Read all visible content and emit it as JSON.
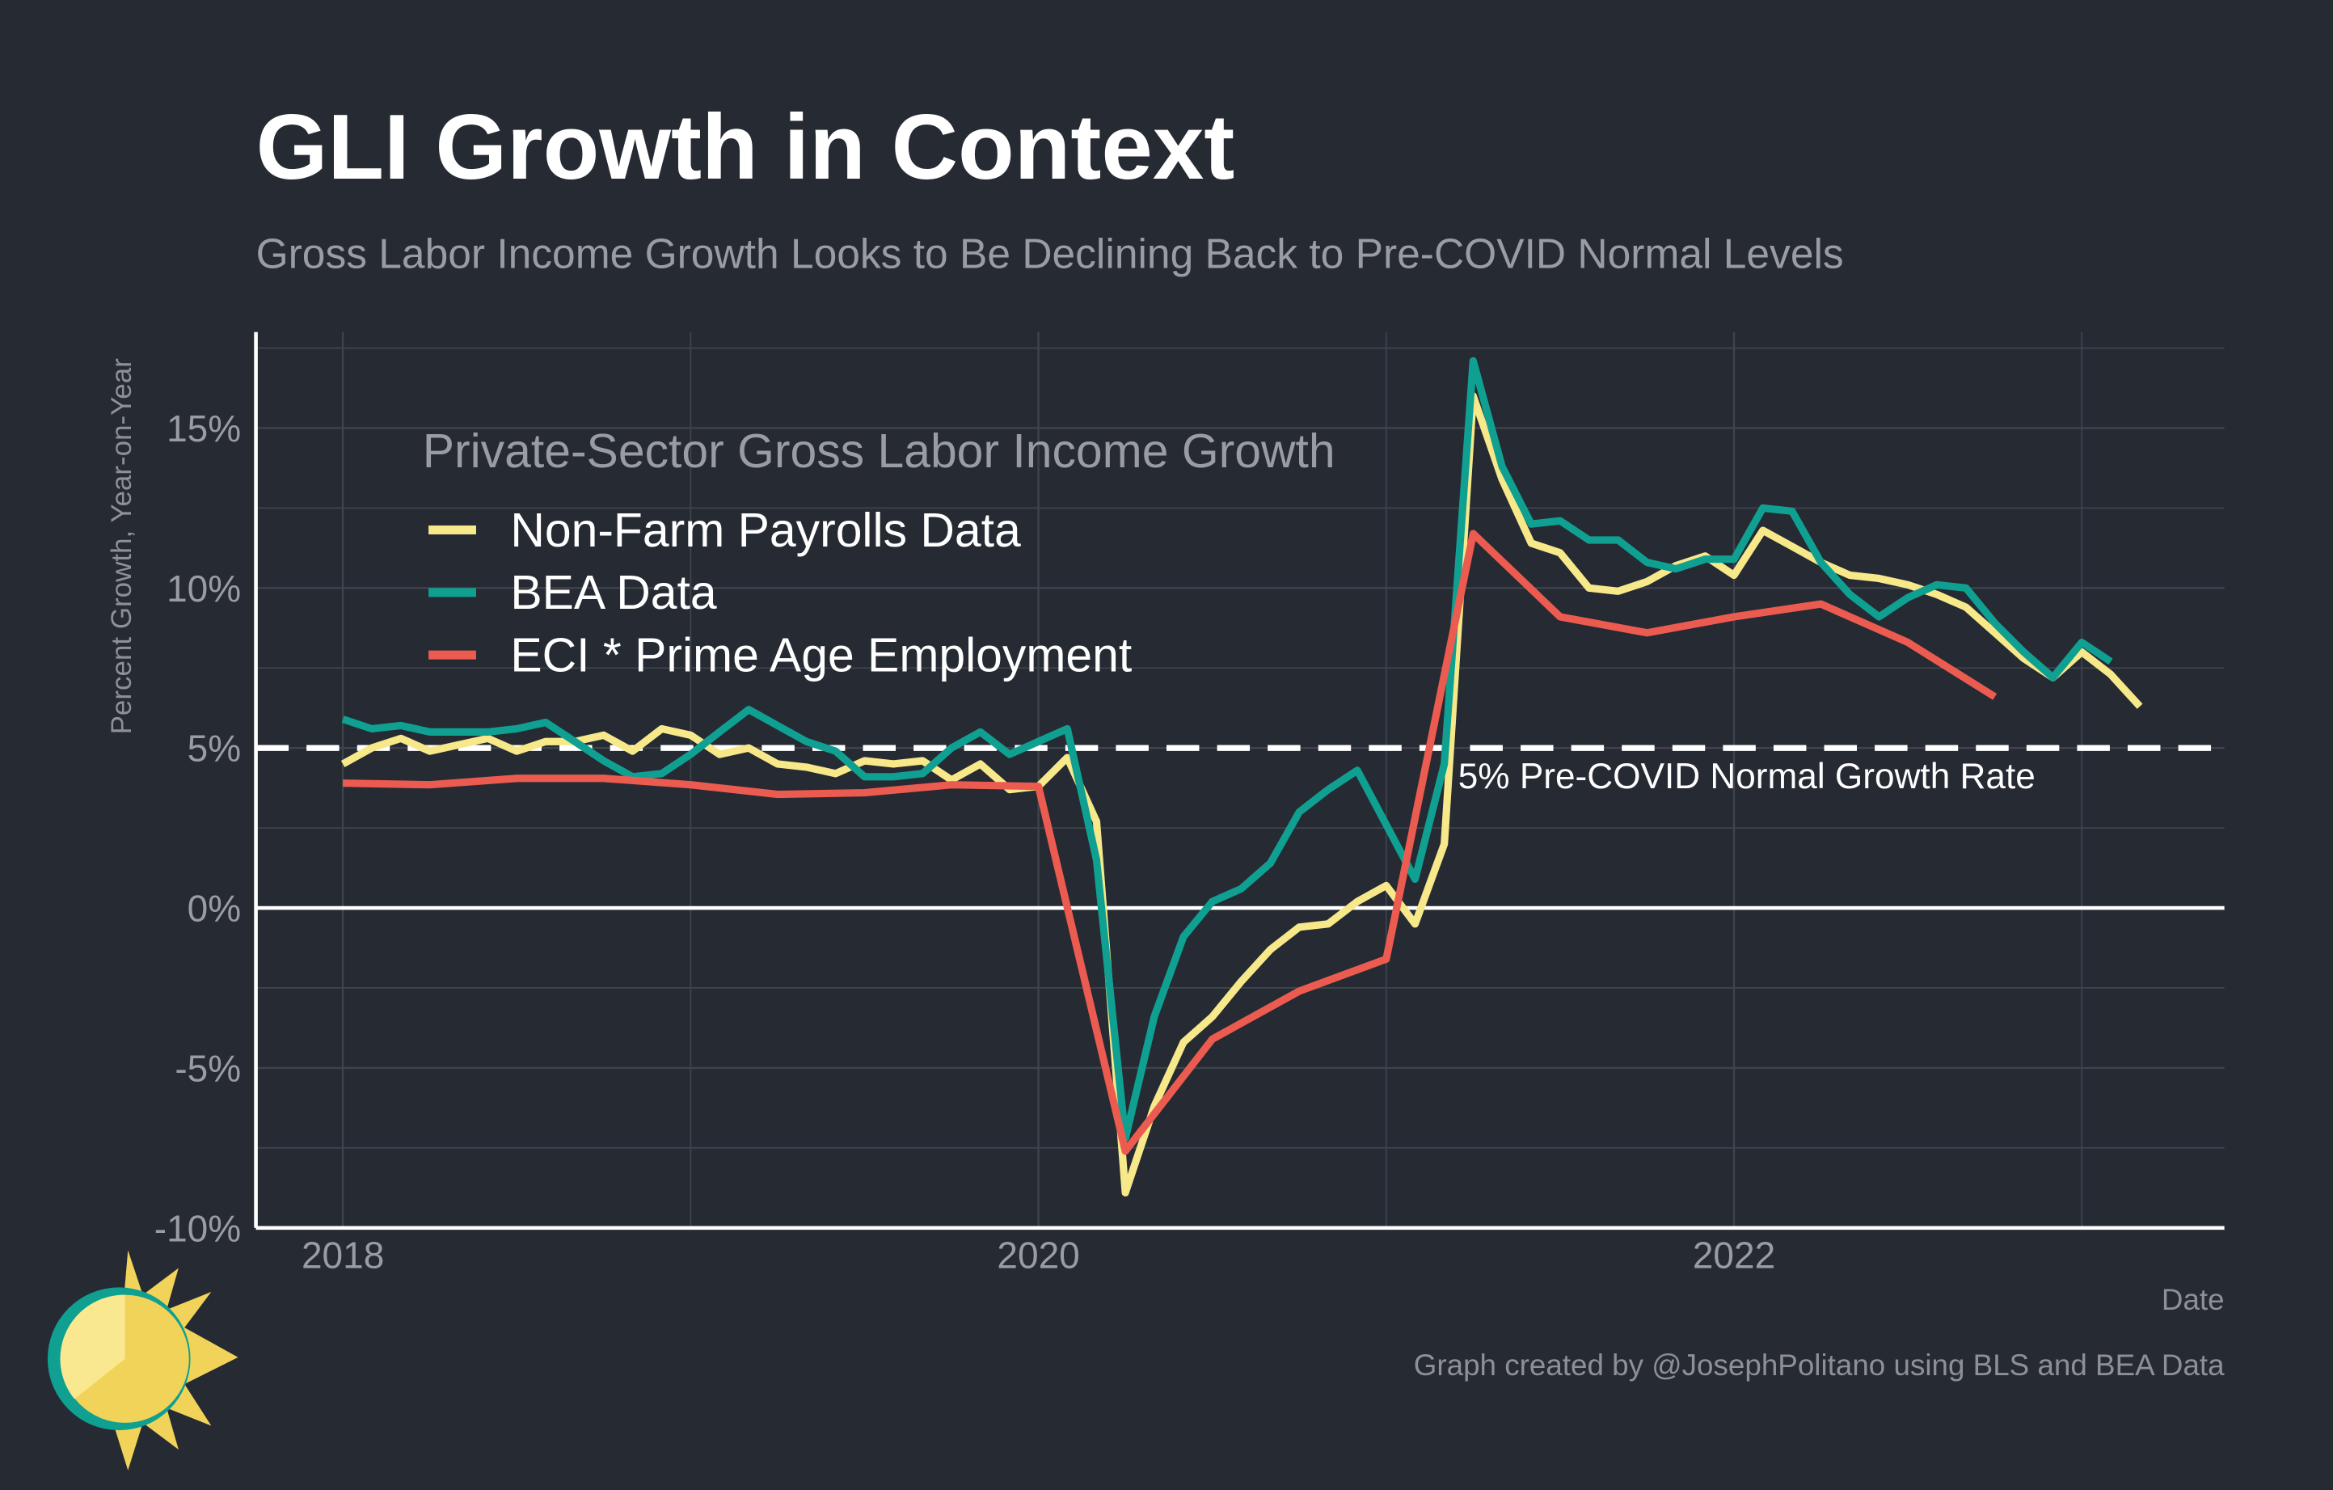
{
  "chart_data": {
    "type": "line",
    "title": "GLI Growth in Context",
    "subtitle": "Gross Labor Income Growth Looks to Be Declining Back to Pre-COVID Normal Levels",
    "y_label": "Percent Growth, Year-on-Year",
    "x_label": "Date",
    "caption": "Graph created by @JosephPolitano using BLS and BEA Data",
    "legend_title": "Private-Sector Gross Labor Income Growth",
    "legend": "top-left",
    "grid": true,
    "xlim": [
      2017.75,
      2023.41
    ],
    "xticks": [
      2018,
      2020,
      2022
    ],
    "x_minor_ticks": [
      2019,
      2021,
      2023
    ],
    "ylim": [
      -10,
      18
    ],
    "yticks": [
      {
        "value": -10,
        "label": "-10%"
      },
      {
        "value": -5,
        "label": "-5%"
      },
      {
        "value": 0,
        "label": "0%"
      },
      {
        "value": 5,
        "label": "5%"
      },
      {
        "value": 10,
        "label": "10%"
      },
      {
        "value": 15,
        "label": "15%"
      }
    ],
    "y_minor_ticks": [
      -7.5,
      -2.5,
      2.5,
      7.5,
      12.5,
      17.5
    ],
    "hline": {
      "value": 5,
      "label": "5% Pre-COVID Normal Growth Rate"
    },
    "series": [
      {
        "name": "Non-Farm Payrolls Data",
        "color": "#f7e88a",
        "x": [
          2018,
          2018.083,
          2018.167,
          2018.25,
          2018.333,
          2018.417,
          2018.5,
          2018.583,
          2018.667,
          2018.75,
          2018.833,
          2018.917,
          2019,
          2019.083,
          2019.167,
          2019.25,
          2019.333,
          2019.417,
          2019.5,
          2019.583,
          2019.667,
          2019.75,
          2019.833,
          2019.917,
          2020,
          2020.083,
          2020.167,
          2020.25,
          2020.333,
          2020.417,
          2020.5,
          2020.583,
          2020.667,
          2020.75,
          2020.833,
          2020.917,
          2021,
          2021.083,
          2021.167,
          2021.25,
          2021.333,
          2021.417,
          2021.5,
          2021.583,
          2021.667,
          2021.75,
          2021.833,
          2021.917,
          2022,
          2022.083,
          2022.167,
          2022.25,
          2022.333,
          2022.417,
          2022.5,
          2022.583,
          2022.667,
          2022.75,
          2022.833,
          2022.917,
          2023,
          2023.083,
          2023.167
        ],
        "values": [
          4.5,
          5.0,
          5.3,
          4.9,
          5.1,
          5.3,
          4.9,
          5.2,
          5.2,
          5.4,
          4.9,
          5.6,
          5.4,
          4.8,
          5.0,
          4.5,
          4.4,
          4.2,
          4.6,
          4.5,
          4.6,
          4.0,
          4.5,
          3.7,
          3.8,
          4.7,
          2.7,
          -8.9,
          -6.2,
          -4.2,
          -3.4,
          -2.3,
          -1.3,
          -0.6,
          -0.5,
          0.2,
          0.7,
          -0.5,
          2.0,
          16.0,
          13.4,
          11.4,
          11.1,
          10.0,
          9.9,
          10.2,
          10.7,
          11.0,
          10.4,
          11.8,
          11.3,
          10.8,
          10.4,
          10.3,
          10.1,
          9.8,
          9.4,
          8.6,
          7.8,
          7.2,
          8.0,
          7.3,
          6.3
        ]
      },
      {
        "name": "BEA Data",
        "color": "#0fa092",
        "x": [
          2018,
          2018.083,
          2018.167,
          2018.25,
          2018.333,
          2018.417,
          2018.5,
          2018.583,
          2018.667,
          2018.75,
          2018.833,
          2018.917,
          2019,
          2019.083,
          2019.167,
          2019.25,
          2019.333,
          2019.417,
          2019.5,
          2019.583,
          2019.667,
          2019.75,
          2019.833,
          2019.917,
          2020,
          2020.083,
          2020.167,
          2020.25,
          2020.333,
          2020.417,
          2020.5,
          2020.583,
          2020.667,
          2020.75,
          2020.833,
          2020.917,
          2021,
          2021.083,
          2021.167,
          2021.25,
          2021.333,
          2021.417,
          2021.5,
          2021.583,
          2021.667,
          2021.75,
          2021.833,
          2021.917,
          2022,
          2022.083,
          2022.167,
          2022.25,
          2022.333,
          2022.417,
          2022.5,
          2022.583,
          2022.667,
          2022.75,
          2022.833,
          2022.917,
          2023,
          2023.083
        ],
        "values": [
          5.9,
          5.6,
          5.7,
          5.5,
          5.5,
          5.5,
          5.6,
          5.8,
          5.2,
          4.6,
          4.1,
          4.2,
          4.8,
          5.5,
          6.2,
          5.7,
          5.2,
          4.9,
          4.1,
          4.1,
          4.2,
          5.0,
          5.5,
          4.8,
          5.2,
          5.6,
          1.5,
          -7.2,
          -3.4,
          -0.9,
          0.2,
          0.6,
          1.4,
          3.0,
          3.7,
          4.3,
          2.6,
          0.9,
          4.5,
          17.1,
          13.8,
          12.0,
          12.1,
          11.5,
          11.5,
          10.8,
          10.6,
          10.9,
          10.9,
          12.5,
          12.4,
          10.8,
          9.8,
          9.1,
          9.7,
          10.1,
          10.0,
          8.9,
          8.0,
          7.2,
          8.3,
          7.7
        ]
      },
      {
        "name": "ECI * Prime Age Employment",
        "color": "#ec5b4f",
        "x": [
          2018,
          2018.25,
          2018.5,
          2018.75,
          2019,
          2019.25,
          2019.5,
          2019.75,
          2020,
          2020.25,
          2020.5,
          2020.75,
          2021,
          2021.25,
          2021.5,
          2021.75,
          2022,
          2022.25,
          2022.5,
          2022.75
        ],
        "values": [
          3.9,
          3.85,
          4.05,
          4.05,
          3.85,
          3.55,
          3.6,
          3.85,
          3.8,
          -7.6,
          -4.1,
          -2.6,
          -1.6,
          11.7,
          9.1,
          8.6,
          9.1,
          9.5,
          8.3,
          6.6
        ]
      }
    ]
  }
}
